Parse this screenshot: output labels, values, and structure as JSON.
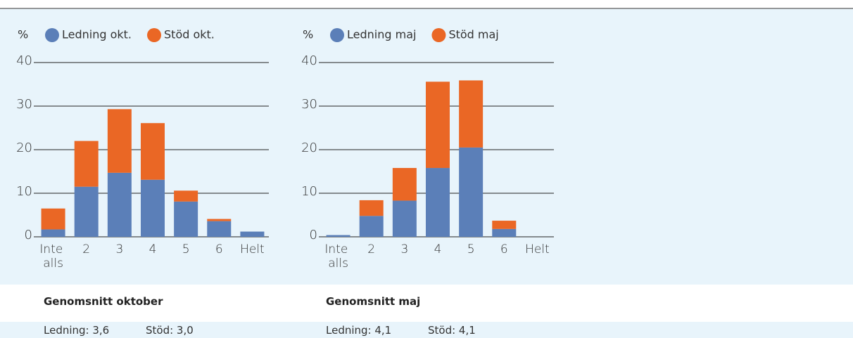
{
  "chart_data": [
    {
      "type": "stacked_bar",
      "y_label": "%",
      "categories": [
        "Inte alls",
        "2",
        "3",
        "4",
        "5",
        "6",
        "Helt"
      ],
      "series": [
        {
          "name": "Ledning okt.",
          "color": "#5b7fb8",
          "values": [
            1.7,
            11.5,
            14.7,
            13.1,
            8.1,
            3.6,
            1.2
          ]
        },
        {
          "name": "Stöd okt.",
          "color": "#ea6725",
          "values": [
            4.8,
            10.5,
            14.6,
            13.0,
            2.5,
            0.5,
            0
          ]
        }
      ],
      "ylim": [
        0,
        40
      ],
      "yticks": [
        0,
        10,
        20,
        30,
        40
      ],
      "grid": true
    },
    {
      "type": "stacked_bar",
      "y_label": "%",
      "categories": [
        "Inte alls",
        "2",
        "3",
        "4",
        "5",
        "6",
        "Helt"
      ],
      "series": [
        {
          "name": "Ledning maj",
          "color": "#5b7fb8",
          "values": [
            0.4,
            4.8,
            8.3,
            15.8,
            20.5,
            1.8,
            0
          ]
        },
        {
          "name": "Stöd maj",
          "color": "#ea6725",
          "values": [
            0,
            3.6,
            7.5,
            19.8,
            15.4,
            1.9,
            0
          ]
        }
      ],
      "ylim": [
        0,
        40
      ],
      "yticks": [
        0,
        10,
        20,
        30,
        40
      ],
      "grid": true
    }
  ],
  "summary": [
    {
      "title": "Genomsnitt oktober",
      "items": [
        "Ledning: 3,6",
        "Stöd: 3,0"
      ]
    },
    {
      "title": "Genomsnitt maj",
      "items": [
        "Ledning: 4,1",
        "Stöd: 4,1"
      ]
    }
  ]
}
